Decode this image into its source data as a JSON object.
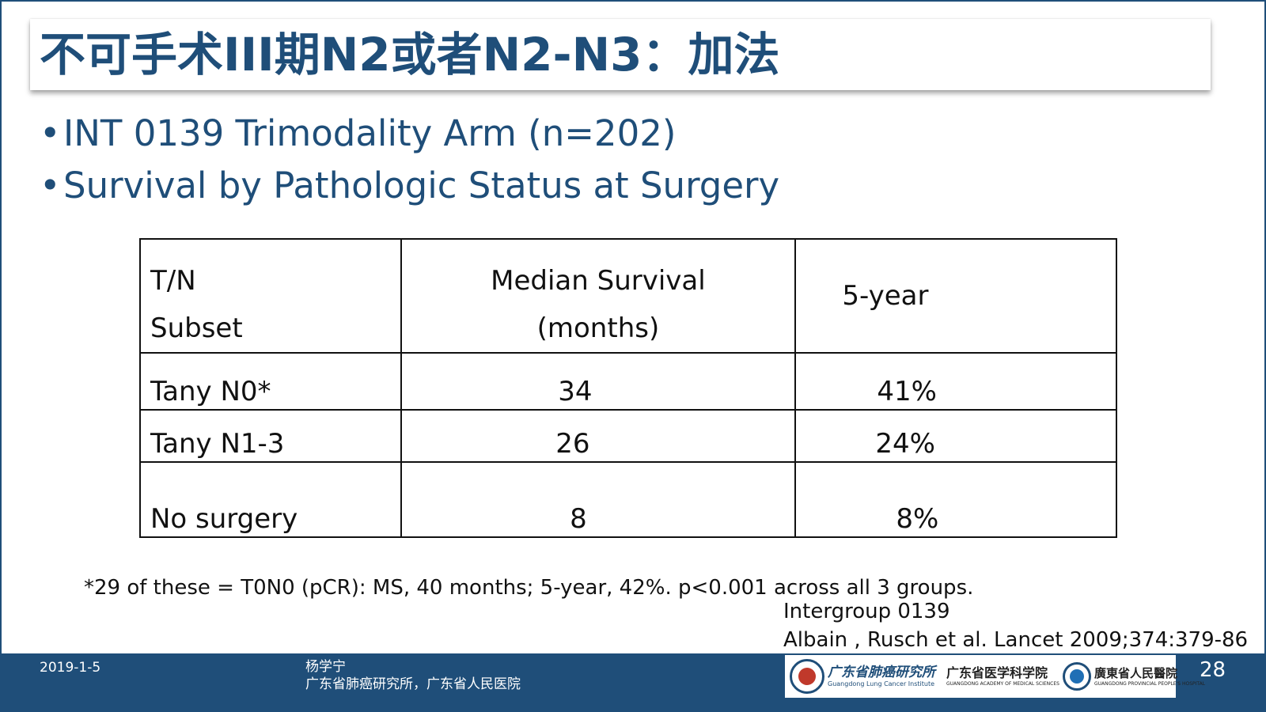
{
  "title": "不可手术III期N2或者N2-N3：加法",
  "bullets": [
    "INT 0139 Trimodality Arm (n=202)",
    "Survival by Pathologic Status at Surgery"
  ],
  "table": {
    "header": {
      "col1_line1": "T/N",
      "col1_line2": "Subset",
      "col2_line1": "Median Survival",
      "col2_line2": "(months)",
      "col3": "5-year"
    },
    "rows": [
      {
        "subset": "Tany N0*",
        "median": "34",
        "five_year": "41%"
      },
      {
        "subset": "Tany N1-3",
        "median": "26",
        "five_year": "24%"
      },
      {
        "subset": "No surgery",
        "median": "8",
        "five_year": "8%"
      }
    ]
  },
  "footnote": "*29 of these = T0N0 (pCR): MS, 40 months; 5-year, 42%.  p<0.001 across all 3 groups.",
  "reference_line1": "Intergroup 0139",
  "reference_line2": "Albain , Rusch et al. Lancet 2009;374:379-86",
  "footer": {
    "date": "2019-1-5",
    "author_name": "杨学宁",
    "author_affiliation": "广东省肺癌研究所，广东省人民医院",
    "page_number": "28",
    "logo1_cn": "广东省肺癌研究所",
    "logo1_en": "Guangdong Lung Cancer Institute",
    "logo2_cn": "广东省医学科学院",
    "logo2_en": "GUANGDONG ACADEMY OF MEDICAL SCIENCES",
    "logo3_cn": "廣東省人民醫院",
    "logo3_en": "GUANGDONG PROVINCIAL PEOPLE'S HOSPITAL"
  },
  "colors": {
    "primary": "#1f4e79",
    "text": "#111111",
    "background": "#ffffff"
  }
}
